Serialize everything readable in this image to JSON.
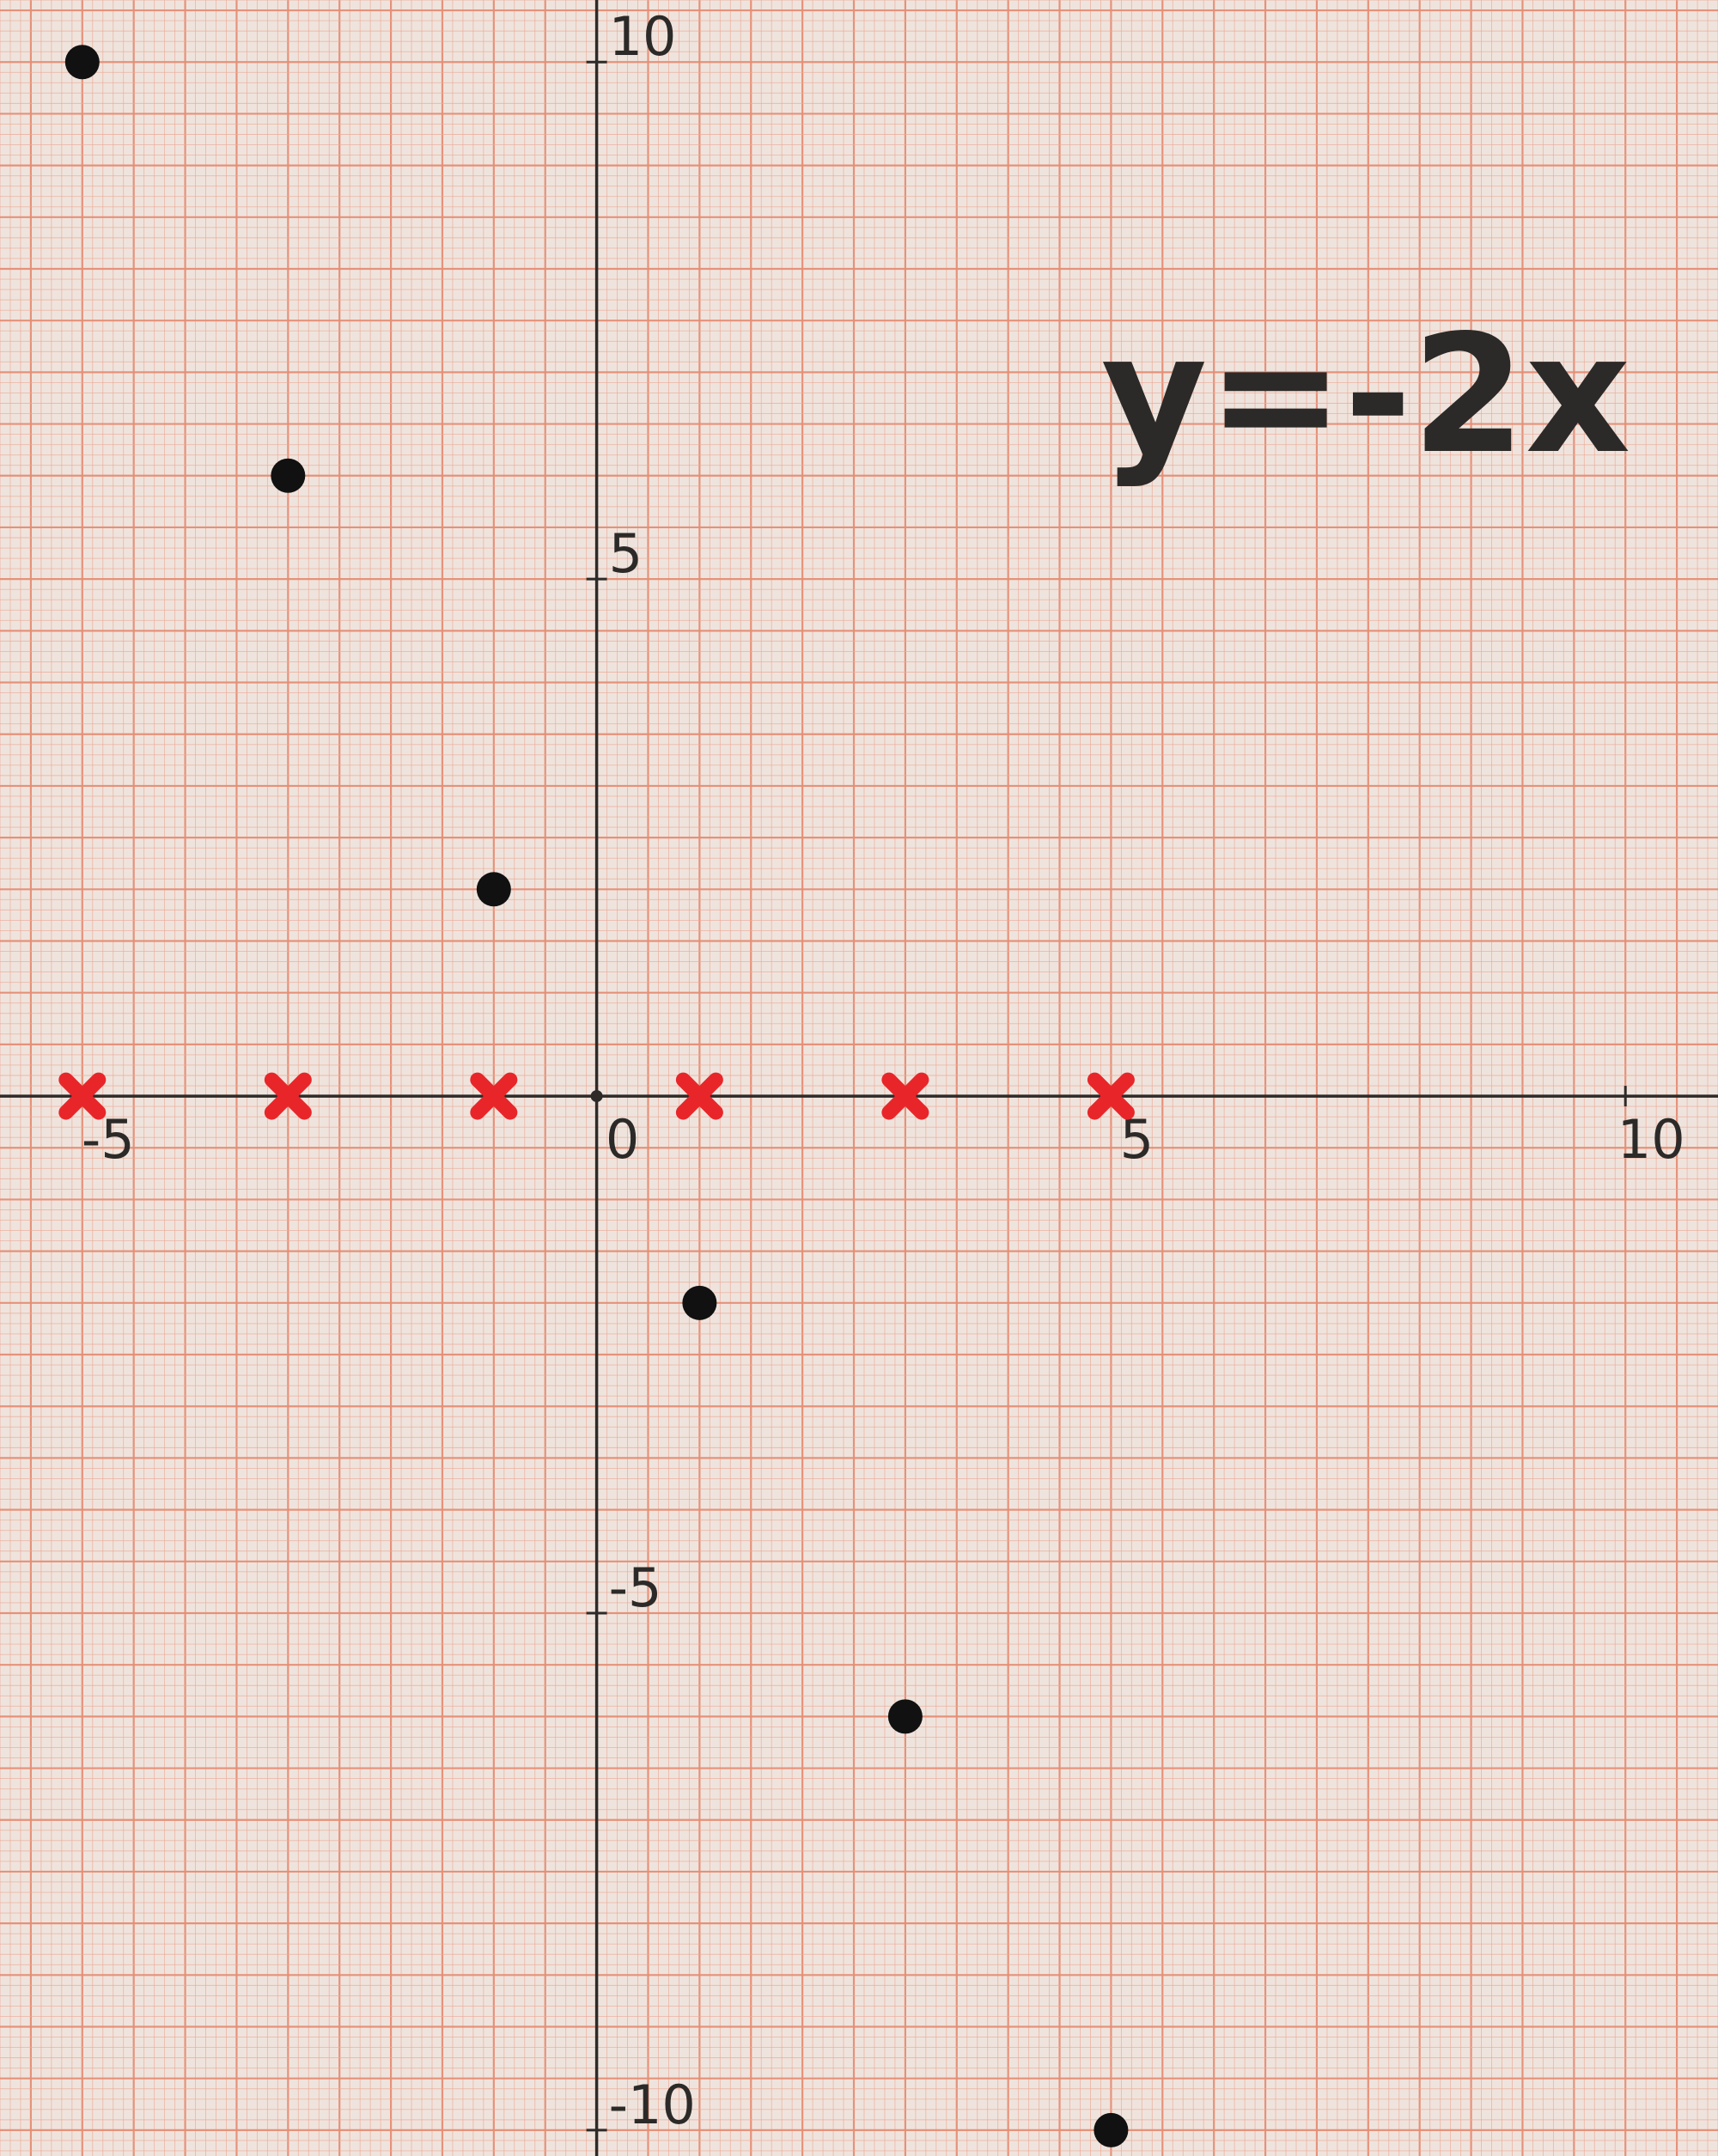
{
  "chart_data": {
    "type": "scatter",
    "title": "y=-2x",
    "xlabel": "",
    "ylabel": "",
    "xlim": [
      -5.8,
      10.9
    ],
    "ylim": [
      -10.25,
      10.6
    ],
    "grid": true,
    "x_tick_labels": [
      {
        "value": -5,
        "label": "-5"
      },
      {
        "value": 0,
        "label": "0"
      },
      {
        "value": 5,
        "label": "5"
      },
      {
        "value": 10,
        "label": "10"
      }
    ],
    "y_tick_labels": [
      {
        "value": 10,
        "label": "10"
      },
      {
        "value": 5,
        "label": "5"
      },
      {
        "value": -5,
        "label": "-5"
      },
      {
        "value": -10,
        "label": "-10"
      }
    ],
    "series": [
      {
        "color": "#111111",
        "marker": "dot",
        "x": [
          -5,
          -3,
          -1,
          1,
          3,
          5
        ],
        "y": [
          10,
          6,
          2,
          -2,
          -6,
          -10
        ]
      },
      {
        "color": "#e8262a",
        "marker": "cross",
        "x": [
          -5,
          -3,
          -1,
          1,
          3,
          5
        ],
        "y": [
          0,
          0,
          0,
          0,
          0,
          0
        ]
      }
    ],
    "colors": {
      "paper": "#efe4dd",
      "fine_grid": "#ecab98",
      "bold_grid": "#e58e75",
      "axis": "#2e2a28",
      "ink": "#111111",
      "red": "#e8262a"
    }
  }
}
